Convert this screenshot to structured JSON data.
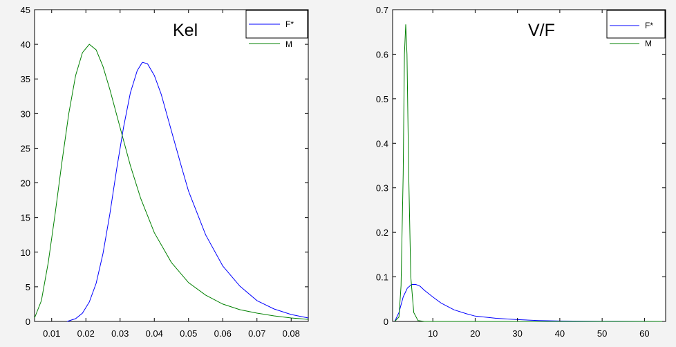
{
  "chart_data": [
    {
      "type": "line",
      "title": "Kel",
      "xlim": [
        0.005,
        0.085
      ],
      "ylim": [
        0,
        45
      ],
      "xticks": [
        "0.01",
        "0.02",
        "0.03",
        "0.04",
        "0.05",
        "0.06",
        "0.07",
        "0.08"
      ],
      "yticks": [
        "0",
        "5",
        "10",
        "15",
        "20",
        "25",
        "30",
        "35",
        "40",
        "45"
      ],
      "legend_position": "top-right",
      "grid": false,
      "series": [
        {
          "name": "F*",
          "color": "#0000ff",
          "points": [
            [
              0.0145,
              0
            ],
            [
              0.017,
              0.4
            ],
            [
              0.019,
              1.2
            ],
            [
              0.021,
              2.8
            ],
            [
              0.023,
              5.5
            ],
            [
              0.025,
              9.8
            ],
            [
              0.027,
              15.5
            ],
            [
              0.029,
              22
            ],
            [
              0.031,
              28
            ],
            [
              0.033,
              33
            ],
            [
              0.035,
              36.2
            ],
            [
              0.0365,
              37.4
            ],
            [
              0.038,
              37.2
            ],
            [
              0.04,
              35.5
            ],
            [
              0.042,
              32.8
            ],
            [
              0.045,
              27.5
            ],
            [
              0.048,
              22.2
            ],
            [
              0.05,
              18.8
            ],
            [
              0.055,
              12.5
            ],
            [
              0.06,
              8
            ],
            [
              0.065,
              5.1
            ],
            [
              0.07,
              3
            ],
            [
              0.075,
              1.8
            ],
            [
              0.08,
              1
            ],
            [
              0.085,
              0.5
            ]
          ]
        },
        {
          "name": "M",
          "color": "#008000",
          "points": [
            [
              0.005,
              0.5
            ],
            [
              0.007,
              3
            ],
            [
              0.009,
              8.5
            ],
            [
              0.011,
              15.5
            ],
            [
              0.013,
              23
            ],
            [
              0.015,
              30
            ],
            [
              0.017,
              35.5
            ],
            [
              0.019,
              38.8
            ],
            [
              0.021,
              40
            ],
            [
              0.023,
              39.2
            ],
            [
              0.025,
              36.8
            ],
            [
              0.027,
              33.5
            ],
            [
              0.03,
              28
            ],
            [
              0.033,
              22.5
            ],
            [
              0.036,
              17.8
            ],
            [
              0.04,
              12.8
            ],
            [
              0.045,
              8.5
            ],
            [
              0.05,
              5.6
            ],
            [
              0.055,
              3.8
            ],
            [
              0.06,
              2.5
            ],
            [
              0.065,
              1.7
            ],
            [
              0.07,
              1.2
            ],
            [
              0.075,
              0.8
            ],
            [
              0.08,
              0.5
            ],
            [
              0.085,
              0.3
            ]
          ]
        }
      ]
    },
    {
      "type": "line",
      "title": "V/F",
      "xlim": [
        0.5,
        65
      ],
      "ylim": [
        0,
        0.7
      ],
      "xticks": [
        "10",
        "20",
        "30",
        "40",
        "50",
        "60"
      ],
      "yticks": [
        "0",
        "0.1",
        "0.2",
        "0.3",
        "0.4",
        "0.5",
        "0.6",
        "0.7"
      ],
      "legend_position": "top-right",
      "grid": false,
      "series": [
        {
          "name": "F*",
          "color": "#0000ff",
          "points": [
            [
              1,
              0
            ],
            [
              2,
              0.02
            ],
            [
              3,
              0.055
            ],
            [
              4,
              0.075
            ],
            [
              5,
              0.083
            ],
            [
              6,
              0.083
            ],
            [
              7,
              0.079
            ],
            [
              8,
              0.07
            ],
            [
              10,
              0.055
            ],
            [
              12,
              0.041
            ],
            [
              15,
              0.026
            ],
            [
              18,
              0.017
            ],
            [
              20,
              0.012
            ],
            [
              25,
              0.007
            ],
            [
              30,
              0.004
            ],
            [
              35,
              0.002
            ],
            [
              40,
              0.001
            ],
            [
              50,
              0.0005
            ],
            [
              65,
              0
            ]
          ]
        },
        {
          "name": "M",
          "color": "#008000",
          "points": [
            [
              1,
              0
            ],
            [
              2,
              0.01
            ],
            [
              2.5,
              0.08
            ],
            [
              3,
              0.33
            ],
            [
              3.3,
              0.6
            ],
            [
              3.6,
              0.667
            ],
            [
              3.9,
              0.6
            ],
            [
              4.3,
              0.33
            ],
            [
              4.8,
              0.1
            ],
            [
              5.5,
              0.02
            ],
            [
              6.5,
              0.002
            ],
            [
              8,
              0
            ],
            [
              65,
              0
            ]
          ]
        }
      ]
    }
  ]
}
